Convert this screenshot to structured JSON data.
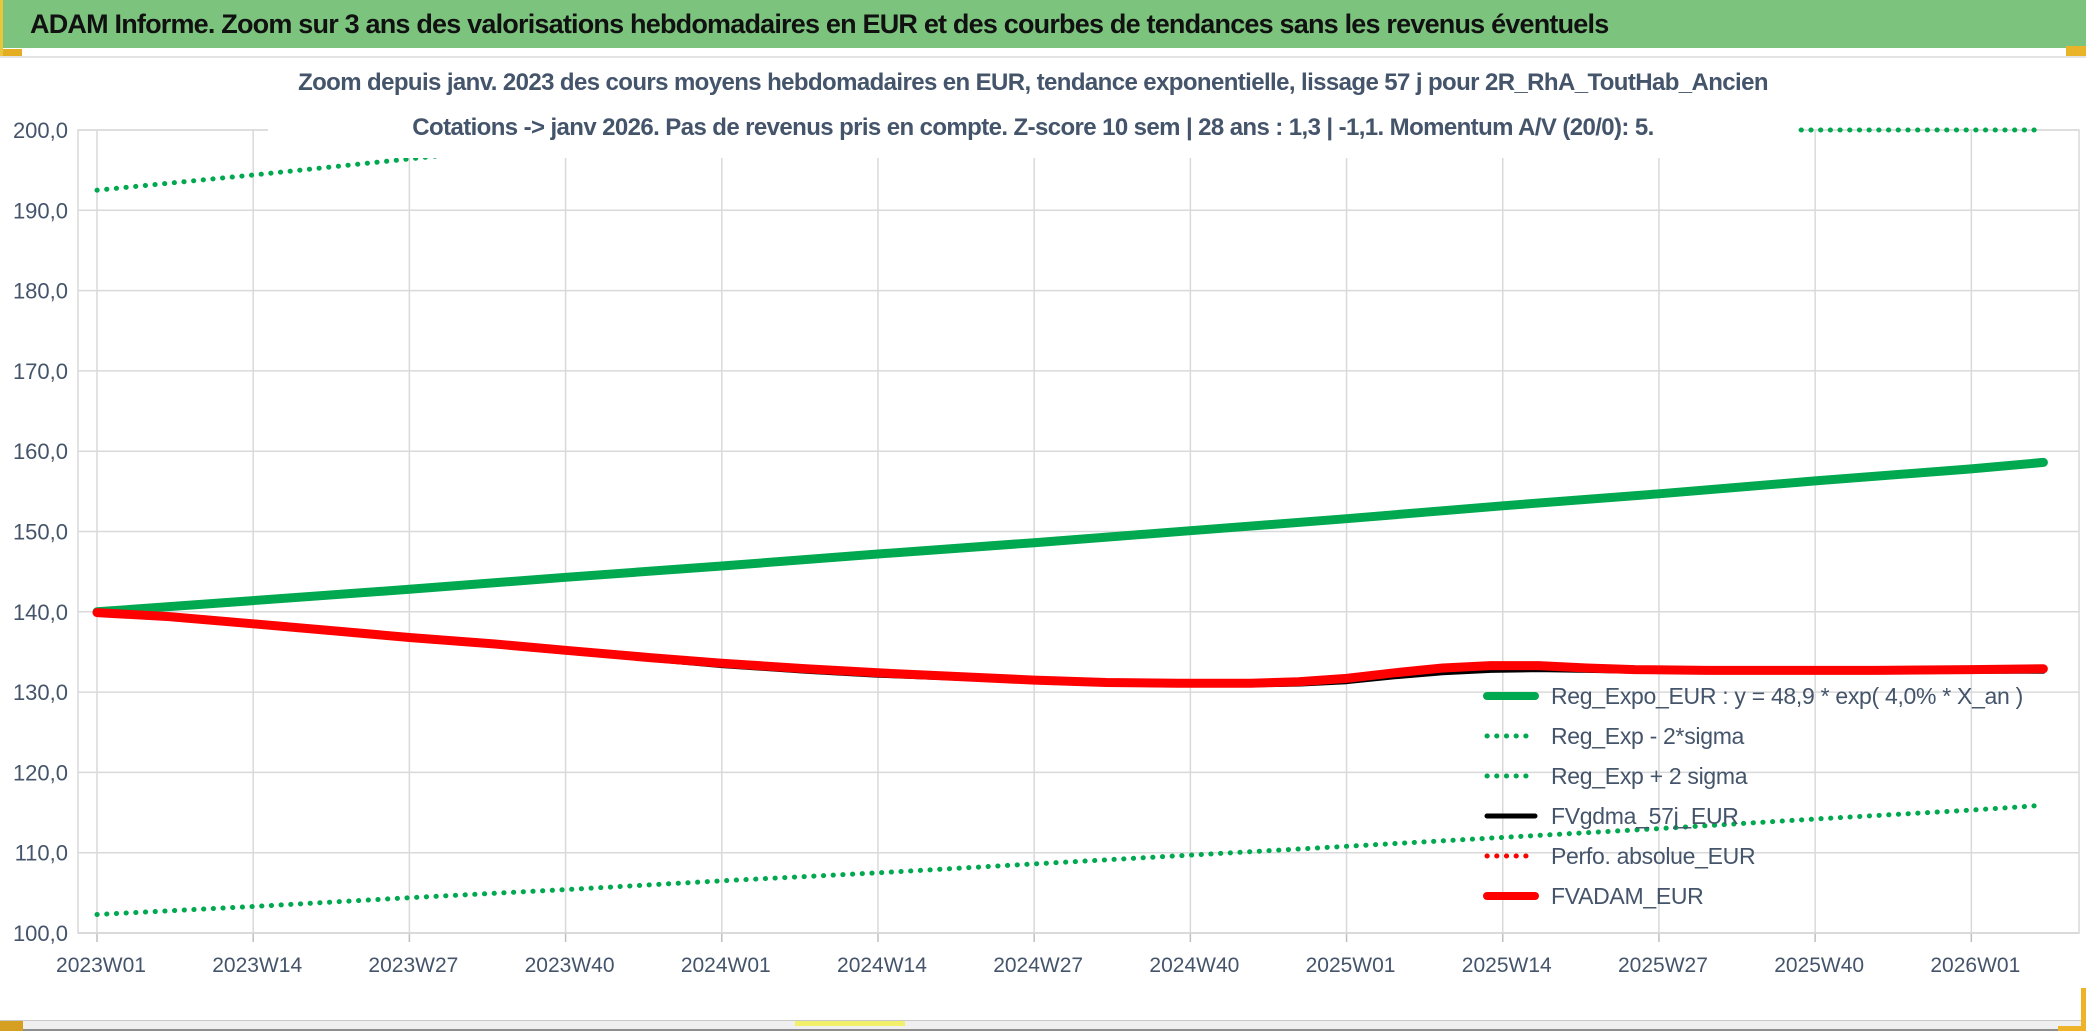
{
  "window": {
    "title": "ADAM Informe. Zoom sur 3 ans des valorisations hebdomadaires en EUR et des courbes de tendances sans les revenus éventuels"
  },
  "colors": {
    "header_green": "#7cc47e",
    "chart_green": "#00a850",
    "series_red": "#ff0000",
    "series_black": "#000000",
    "chart_text": "#44546a",
    "gridline": "#d9d9d9",
    "axis_line": "#bfbfbf",
    "gold_accent": "#e3ae21",
    "yellow_accent": "#f2ef6b"
  },
  "chart_data": {
    "type": "line",
    "title_line1": "Zoom depuis janv. 2023 des cours moyens hebdomadaires en EUR, tendance exponentielle, lissage 57 j pour 2R_RhA_ToutHab_Ancien",
    "title_line2": "Cotations -> janv 2026. Pas de revenus pris en compte. Z-score 10 sem | 28 ans : 1,3 | -1,1. Momentum A/V (20/0): 5.",
    "xlabel": "",
    "ylabel": "",
    "ylim": [
      100,
      200
    ],
    "y_tick_step": 10,
    "y_tick_labels": [
      "100,0",
      "110,0",
      "120,0",
      "130,0",
      "140,0",
      "150,0",
      "160,0",
      "170,0",
      "180,0",
      "190,0",
      "200,0"
    ],
    "x_tick_labels": [
      "2023W01",
      "2023W14",
      "2023W27",
      "2023W40",
      "2024W01",
      "2024W14",
      "2024W27",
      "2024W40",
      "2025W01",
      "2025W14",
      "2025W27",
      "2025W40",
      "2026W01"
    ],
    "x_tick_weeks": [
      0,
      13,
      26,
      39,
      52,
      65,
      78,
      91,
      104,
      117,
      130,
      143,
      156
    ],
    "x_range_weeks": [
      0,
      165
    ],
    "grid": true,
    "legend_position": "inside-right",
    "series": [
      {
        "name": "Reg_Expo_EUR : y = 48,9 * exp( 4,0% *  X_an )",
        "color": "#00a850",
        "style": "solid",
        "width": 9,
        "points": [
          [
            0,
            140.0
          ],
          [
            13,
            141.4
          ],
          [
            26,
            142.8
          ],
          [
            39,
            144.3
          ],
          [
            52,
            145.7
          ],
          [
            65,
            147.2
          ],
          [
            78,
            148.6
          ],
          [
            91,
            150.1
          ],
          [
            104,
            151.6
          ],
          [
            117,
            153.2
          ],
          [
            130,
            154.7
          ],
          [
            143,
            156.3
          ],
          [
            156,
            157.8
          ],
          [
            162,
            158.6
          ]
        ]
      },
      {
        "name": "Reg_Exp - 2*sigma",
        "color": "#00a850",
        "style": "dotted",
        "width": 5,
        "points": [
          [
            0,
            102.3
          ],
          [
            13,
            103.3
          ],
          [
            26,
            104.4
          ],
          [
            39,
            105.4
          ],
          [
            52,
            106.5
          ],
          [
            65,
            107.5
          ],
          [
            78,
            108.6
          ],
          [
            91,
            109.7
          ],
          [
            104,
            110.8
          ],
          [
            117,
            111.9
          ],
          [
            130,
            113.0
          ],
          [
            143,
            114.2
          ],
          [
            156,
            115.3
          ],
          [
            162,
            115.9
          ]
        ]
      },
      {
        "name": "Reg_Exp + 2 sigma",
        "color": "#00a850",
        "style": "dotted",
        "width": 5,
        "points": [
          [
            0,
            192.5
          ],
          [
            13,
            194.4
          ],
          [
            26,
            196.4
          ],
          [
            39,
            198.4
          ],
          [
            49,
            199.9
          ],
          [
            50,
            200.0
          ],
          [
            162,
            200.0
          ]
        ]
      },
      {
        "name": "FVgdma_57j_EUR",
        "color": "#000000",
        "style": "solid",
        "width": 5,
        "points": [
          [
            0,
            139.8
          ],
          [
            6,
            139.4
          ],
          [
            13,
            138.4
          ],
          [
            20,
            137.4
          ],
          [
            26,
            136.6
          ],
          [
            33,
            135.8
          ],
          [
            39,
            135.0
          ],
          [
            46,
            134.1
          ],
          [
            52,
            133.3
          ],
          [
            59,
            132.6
          ],
          [
            65,
            132.1
          ],
          [
            72,
            131.7
          ],
          [
            78,
            131.3
          ],
          [
            84,
            131.0
          ],
          [
            90,
            130.9
          ],
          [
            96,
            130.9
          ],
          [
            100,
            131.0
          ],
          [
            104,
            131.3
          ],
          [
            108,
            131.9
          ],
          [
            112,
            132.4
          ],
          [
            116,
            132.7
          ],
          [
            120,
            132.8
          ],
          [
            124,
            132.7
          ],
          [
            128,
            132.6
          ],
          [
            134,
            132.5
          ],
          [
            140,
            132.5
          ],
          [
            148,
            132.5
          ],
          [
            156,
            132.6
          ],
          [
            162,
            132.6
          ]
        ]
      },
      {
        "name": "Perfo. absolue_EUR",
        "color": "#ff0000",
        "style": "dotted",
        "width": 5,
        "points": [
          [
            0,
            139.9
          ],
          [
            6,
            139.4
          ],
          [
            13,
            138.5
          ],
          [
            20,
            137.6
          ],
          [
            26,
            136.8
          ],
          [
            33,
            136.0
          ],
          [
            39,
            135.2
          ],
          [
            46,
            134.3
          ],
          [
            52,
            133.6
          ],
          [
            59,
            132.9
          ],
          [
            65,
            132.4
          ],
          [
            72,
            131.9
          ],
          [
            78,
            131.5
          ],
          [
            84,
            131.2
          ],
          [
            90,
            131.1
          ],
          [
            96,
            131.1
          ],
          [
            100,
            131.3
          ],
          [
            104,
            131.7
          ],
          [
            108,
            132.4
          ],
          [
            112,
            133.0
          ],
          [
            116,
            133.3
          ],
          [
            120,
            133.3
          ],
          [
            124,
            133.0
          ],
          [
            128,
            132.8
          ],
          [
            134,
            132.7
          ],
          [
            140,
            132.7
          ],
          [
            148,
            132.7
          ],
          [
            156,
            132.8
          ],
          [
            162,
            132.9
          ]
        ]
      },
      {
        "name": "FVADAM_EUR",
        "color": "#ff0000",
        "style": "solid",
        "width": 9,
        "points": [
          [
            0,
            139.9
          ],
          [
            6,
            139.4
          ],
          [
            13,
            138.5
          ],
          [
            20,
            137.6
          ],
          [
            26,
            136.8
          ],
          [
            33,
            136.0
          ],
          [
            39,
            135.2
          ],
          [
            46,
            134.3
          ],
          [
            52,
            133.6
          ],
          [
            59,
            132.9
          ],
          [
            65,
            132.4
          ],
          [
            72,
            131.9
          ],
          [
            78,
            131.5
          ],
          [
            84,
            131.2
          ],
          [
            90,
            131.1
          ],
          [
            96,
            131.1
          ],
          [
            100,
            131.3
          ],
          [
            104,
            131.7
          ],
          [
            108,
            132.4
          ],
          [
            112,
            133.0
          ],
          [
            116,
            133.3
          ],
          [
            120,
            133.3
          ],
          [
            124,
            133.0
          ],
          [
            128,
            132.8
          ],
          [
            134,
            132.7
          ],
          [
            140,
            132.7
          ],
          [
            148,
            132.7
          ],
          [
            156,
            132.8
          ],
          [
            162,
            132.9
          ]
        ]
      }
    ],
    "draw_order": [
      2,
      1,
      0,
      3,
      4,
      5
    ]
  }
}
